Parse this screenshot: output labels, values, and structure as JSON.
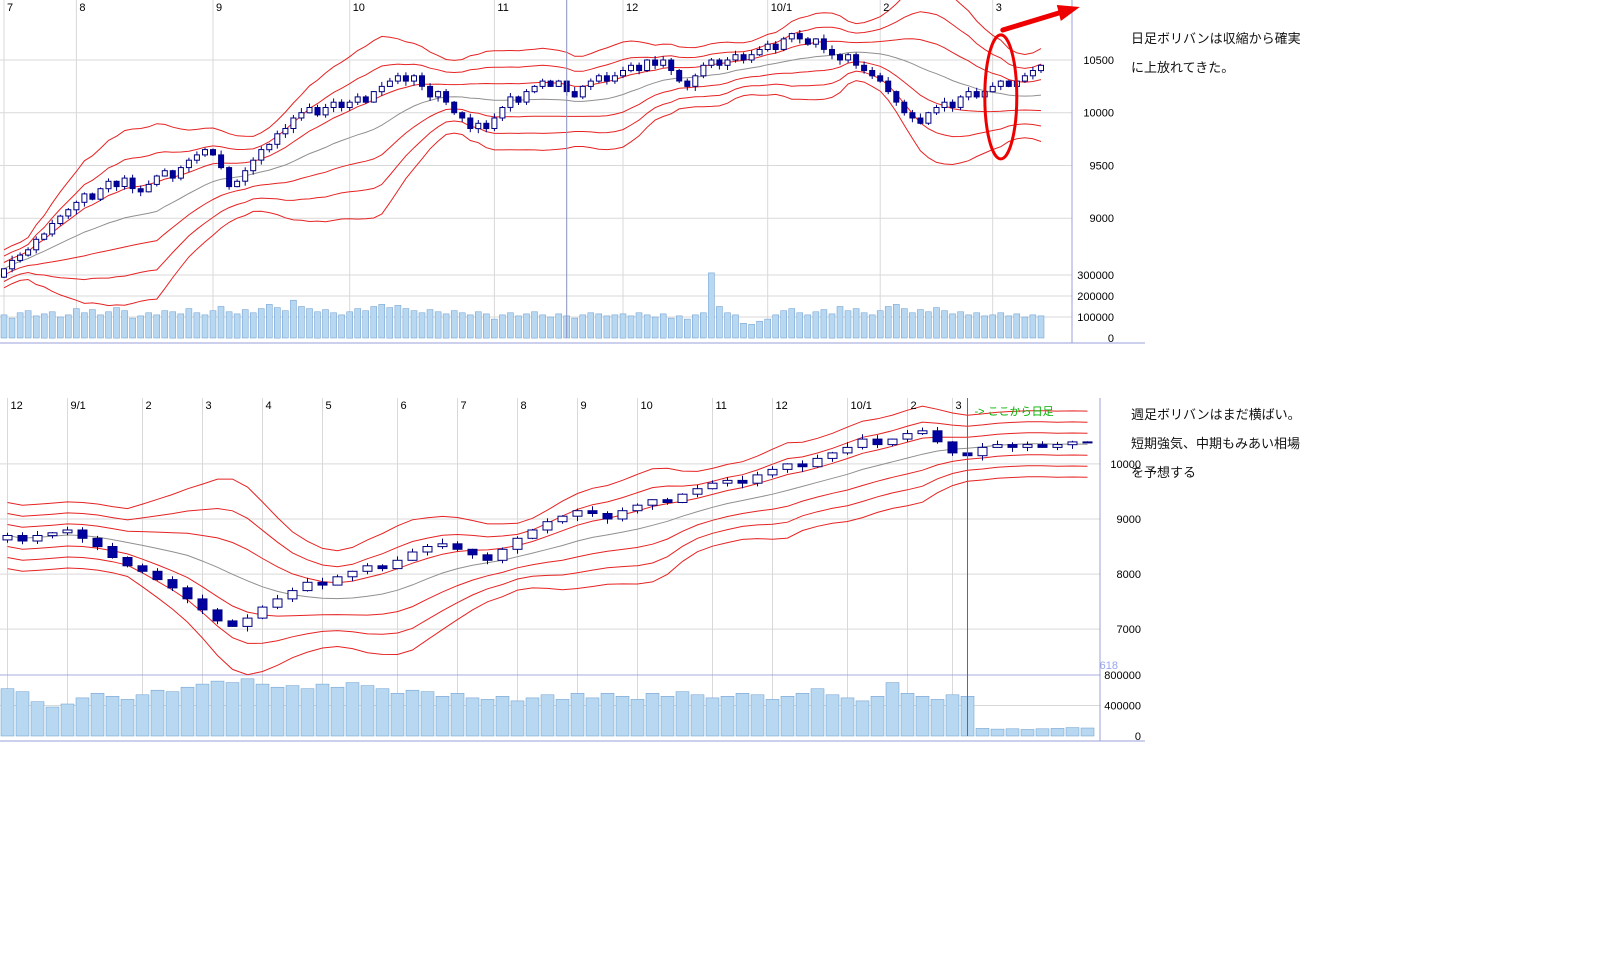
{
  "colors": {
    "grid": "#d9d9d9",
    "band": "#e62222",
    "ma": "#909090",
    "candle_border": "#000080",
    "candle_up_fill": "#ffffff",
    "candle_down_fill": "#0000a0",
    "volume_fill": "#b8d8f2",
    "volume_border": "#6699cc",
    "frame": "#9aa0d8",
    "cursor": "#8890c0",
    "green": "#00b300",
    "blue_label": "#96a6f0",
    "red": "#ee0000",
    "vol_line": "#a8ace0"
  },
  "daily": {
    "note_lines": [
      "日足ボリバンは収縮から確実",
      "に上放れてきた。"
    ],
    "chart_data": {
      "type": "candlestick+volume",
      "title": "",
      "x_labels": [
        "7",
        "8",
        "9",
        "10",
        "11",
        "12",
        "10/1",
        "2",
        "3"
      ],
      "x_label_positions": [
        0,
        9,
        26,
        43,
        61,
        77,
        95,
        109,
        123
      ],
      "price_ticks": [
        9000,
        9500,
        10000,
        10500
      ],
      "price_range": [
        8300,
        11050
      ],
      "volume_ticks": [
        0,
        100000,
        200000,
        300000
      ],
      "bollinger": {
        "window": 20,
        "sigmas": [
          1,
          2,
          3
        ],
        "min_sigma": 60
      },
      "cursor_index": 70,
      "closes": [
        8520,
        8600,
        8650,
        8700,
        8800,
        8850,
        8950,
        9020,
        9080,
        9150,
        9230,
        9180,
        9280,
        9350,
        9300,
        9380,
        9280,
        9250,
        9320,
        9400,
        9450,
        9380,
        9480,
        9550,
        9600,
        9650,
        9600,
        9480,
        9300,
        9350,
        9450,
        9550,
        9650,
        9700,
        9800,
        9850,
        9950,
        10000,
        10050,
        9980,
        10050,
        10100,
        10050,
        10100,
        10150,
        10100,
        10200,
        10250,
        10300,
        10350,
        10300,
        10350,
        10250,
        10150,
        10200,
        10100,
        10000,
        9950,
        9850,
        9900,
        9850,
        9950,
        10050,
        10150,
        10100,
        10200,
        10250,
        10300,
        10250,
        10300,
        10200,
        10150,
        10250,
        10300,
        10350,
        10300,
        10350,
        10400,
        10450,
        10400,
        10500,
        10450,
        10500,
        10400,
        10300,
        10250,
        10350,
        10450,
        10500,
        10450,
        10500,
        10550,
        10500,
        10550,
        10600,
        10650,
        10600,
        10700,
        10750,
        10700,
        10650,
        10700,
        10600,
        10550,
        10500,
        10550,
        10450,
        10400,
        10350,
        10300,
        10200,
        10100,
        10000,
        9950,
        9900,
        10000,
        10050,
        10100,
        10050,
        10150,
        10200,
        10150,
        10200,
        10250,
        10300,
        10250,
        10300,
        10350,
        10400,
        10450
      ],
      "volumes": [
        110000,
        95000,
        120000,
        130000,
        105000,
        115000,
        125000,
        100000,
        110000,
        140000,
        120000,
        135000,
        110000,
        125000,
        145000,
        130000,
        95000,
        105000,
        120000,
        110000,
        130000,
        125000,
        115000,
        140000,
        120000,
        110000,
        130000,
        150000,
        125000,
        115000,
        135000,
        120000,
        140000,
        160000,
        145000,
        130000,
        180000,
        150000,
        140000,
        125000,
        135000,
        120000,
        110000,
        125000,
        140000,
        130000,
        150000,
        160000,
        145000,
        155000,
        140000,
        130000,
        120000,
        135000,
        125000,
        115000,
        130000,
        120000,
        110000,
        125000,
        115000,
        90000,
        110000,
        120000,
        105000,
        115000,
        125000,
        110000,
        100000,
        115000,
        105000,
        95000,
        110000,
        120000,
        115000,
        105000,
        110000,
        115000,
        105000,
        120000,
        110000,
        100000,
        115000,
        95000,
        105000,
        90000,
        110000,
        120000,
        310000,
        150000,
        120000,
        110000,
        70000,
        65000,
        80000,
        90000,
        110000,
        130000,
        140000,
        120000,
        110000,
        125000,
        135000,
        115000,
        150000,
        130000,
        140000,
        120000,
        110000,
        130000,
        150000,
        160000,
        140000,
        120000,
        135000,
        125000,
        145000,
        130000,
        115000,
        125000,
        110000,
        120000,
        105000,
        110000,
        120000,
        105000,
        115000,
        100000,
        110000,
        105000
      ],
      "annotations": {
        "ellipse_index": 124,
        "ellipse_price": 10150,
        "arrow": "up-right"
      }
    }
  },
  "weekly": {
    "note_lines": [
      "週足ボリバンはまだ横ばい。",
      "短期強気、中期もみあい相場",
      "を予想する"
    ],
    "chart_data": {
      "type": "candlestick+volume",
      "title": "",
      "x_labels": [
        "12",
        "9/1",
        "2",
        "3",
        "4",
        "5",
        "6",
        "7",
        "8",
        "9",
        "10",
        "11",
        "12",
        "10/1",
        "2",
        "3"
      ],
      "x_label_positions": [
        0,
        4,
        9,
        13,
        17,
        21,
        26,
        30,
        34,
        38,
        42,
        47,
        51,
        56,
        60,
        63
      ],
      "price_ticks": [
        7000,
        8000,
        9000,
        10000
      ],
      "price_range": [
        5750,
        11160
      ],
      "volume_ticks": [
        0,
        400000,
        800000
      ],
      "bollinger": {
        "window": 13,
        "sigmas": [
          1,
          2,
          3
        ],
        "min_sigma": 200
      },
      "marker_index": 64,
      "marker_label": "-> ここから日足",
      "side_label": "618",
      "closes": [
        8700,
        8600,
        8700,
        8750,
        8800,
        8650,
        8500,
        8300,
        8150,
        8050,
        7900,
        7750,
        7550,
        7350,
        7150,
        7050,
        7200,
        7400,
        7550,
        7700,
        7850,
        7800,
        7950,
        8050,
        8150,
        8100,
        8250,
        8400,
        8500,
        8550,
        8450,
        8350,
        8250,
        8450,
        8650,
        8800,
        8950,
        9050,
        9150,
        9100,
        9000,
        9150,
        9250,
        9350,
        9300,
        9450,
        9550,
        9650,
        9700,
        9650,
        9800,
        9900,
        10000,
        9950,
        10100,
        10200,
        10300,
        10450,
        10350,
        10450,
        10550,
        10600,
        10400,
        10200,
        10150,
        10300,
        10350,
        10300,
        10350,
        10300,
        10350,
        10400,
        10400
      ],
      "volumes": [
        620000,
        580000,
        450000,
        380000,
        420000,
        500000,
        560000,
        520000,
        480000,
        540000,
        600000,
        580000,
        640000,
        680000,
        720000,
        700000,
        750000,
        680000,
        640000,
        660000,
        620000,
        680000,
        640000,
        700000,
        660000,
        620000,
        560000,
        600000,
        580000,
        520000,
        560000,
        500000,
        480000,
        520000,
        460000,
        500000,
        540000,
        480000,
        560000,
        500000,
        560000,
        520000,
        480000,
        560000,
        520000,
        580000,
        540000,
        500000,
        520000,
        560000,
        540000,
        480000,
        520000,
        560000,
        620000,
        540000,
        500000,
        460000,
        520000,
        700000,
        560000,
        520000,
        480000,
        540000,
        520000,
        100000,
        90000,
        95000,
        85000,
        95000,
        100000,
        110000,
        105000
      ]
    }
  }
}
